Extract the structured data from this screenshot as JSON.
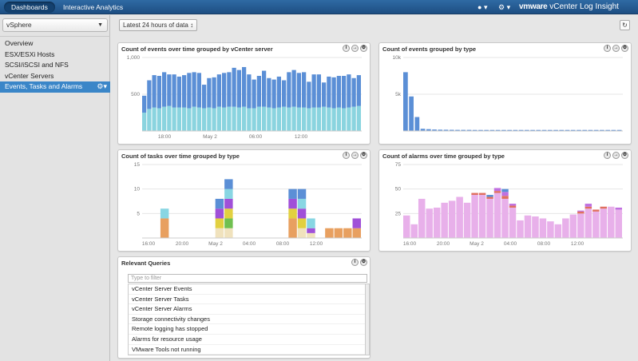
{
  "topbar": {
    "tabs": [
      "Dashboards",
      "Interactive Analytics"
    ],
    "user_icon": "user-icon",
    "settings_icon": "gear-icon",
    "brand_logo": "vmware",
    "brand_title": "vCenter Log Insight"
  },
  "sidebar": {
    "selected": "vSphere",
    "items": [
      "Overview",
      "ESX/ESXi Hosts",
      "SCSI/iSCSI and NFS",
      "vCenter Servers",
      "Events, Tasks and Alarms"
    ],
    "active_index": 4
  },
  "toolbar": {
    "time_range": "Latest 24 hours of data",
    "refresh_icon": "refresh-icon"
  },
  "panels": {
    "events_by_server": {
      "title": "Count of events over time grouped by vCenter server"
    },
    "events_by_type": {
      "title": "Count of events grouped by type"
    },
    "tasks_by_type": {
      "title": "Count of tasks over time grouped by type"
    },
    "alarms_by_type": {
      "title": "Count of alarms over time grouped by type"
    },
    "queries": {
      "title": "Relevant Queries",
      "filter_placeholder": "Type to filter",
      "items": [
        "vCenter Server Events",
        "vCenter Server Tasks",
        "vCenter Server Alarms",
        "Storage connectivity changes",
        "Remote logging has stopped",
        "Alarms for resource usage",
        "VMware Tools not running"
      ]
    }
  },
  "chart_data": [
    {
      "type": "bar",
      "title": "Count of events over time grouped by vCenter server",
      "stacked": true,
      "xticks": [
        "18:00",
        "May 2",
        "06:00",
        "12:00"
      ],
      "yticks": [
        "500",
        "1,000"
      ],
      "ylim": [
        0,
        1000
      ],
      "series": [
        {
          "color": "#8ad4df",
          "values": [
            250,
            300,
            320,
            310,
            330,
            340,
            320,
            320,
            320,
            310,
            330,
            320,
            310,
            320,
            310,
            330,
            320,
            330,
            330,
            320,
            330,
            310,
            310,
            330,
            330,
            320,
            310,
            320,
            330,
            320,
            330,
            320,
            320,
            310,
            320,
            320,
            330,
            320,
            310,
            320,
            310,
            320,
            330,
            340
          ]
        },
        {
          "color": "#5b8fd6",
          "values": [
            230,
            390,
            440,
            440,
            470,
            430,
            450,
            420,
            440,
            480,
            470,
            470,
            320,
            400,
            420,
            440,
            470,
            470,
            530,
            510,
            540,
            460,
            390,
            420,
            490,
            400,
            390,
            420,
            360,
            480,
            500,
            470,
            480,
            360,
            450,
            450,
            330,
            420,
            420,
            430,
            440,
            450,
            390,
            420
          ]
        }
      ]
    },
    {
      "type": "bar",
      "title": "Count of events grouped by type",
      "yticks": [
        "5k",
        "10k"
      ],
      "ylim": [
        0,
        10000
      ],
      "values": [
        8000,
        4700,
        1900,
        300,
        250,
        200,
        180,
        170,
        160,
        150,
        150,
        150,
        140,
        140,
        140,
        140,
        140,
        140,
        140,
        140,
        140,
        140,
        140,
        140,
        140,
        140,
        140,
        140,
        140,
        140,
        140,
        140,
        140,
        140,
        140,
        140,
        140,
        140
      ]
    },
    {
      "type": "bar",
      "title": "Count of tasks over time grouped by type",
      "stacked": true,
      "xticks": [
        "16:00",
        "20:00",
        "May 2",
        "04:00",
        "08:00",
        "12:00"
      ],
      "yticks": [
        "5",
        "10",
        "15"
      ],
      "ylim": [
        0,
        15
      ],
      "categories_slots": 24,
      "series": [
        {
          "color": "#f0e2bd",
          "values": [
            0,
            0,
            0,
            0,
            0,
            0,
            0,
            0,
            2,
            2,
            0,
            0,
            0,
            0,
            0,
            0,
            0,
            2,
            1,
            0,
            0,
            0,
            0,
            0
          ]
        },
        {
          "color": "#e8a060",
          "values": [
            0,
            0,
            4,
            0,
            0,
            0,
            0,
            0,
            0,
            0,
            0,
            0,
            0,
            0,
            0,
            0,
            4,
            0,
            0,
            0,
            2,
            2,
            2,
            2
          ]
        },
        {
          "color": "#70c050",
          "values": [
            0,
            0,
            0,
            0,
            0,
            0,
            0,
            0,
            0,
            2,
            0,
            0,
            0,
            0,
            0,
            0,
            0,
            0,
            0,
            0,
            0,
            0,
            0,
            0
          ]
        },
        {
          "color": "#e2d040",
          "values": [
            0,
            0,
            0,
            0,
            0,
            0,
            0,
            0,
            2,
            2,
            0,
            0,
            0,
            0,
            0,
            0,
            2,
            2,
            0,
            0,
            0,
            0,
            0,
            0
          ]
        },
        {
          "color": "#a050d8",
          "values": [
            0,
            0,
            0,
            0,
            0,
            0,
            0,
            0,
            2,
            2,
            0,
            0,
            0,
            0,
            0,
            0,
            2,
            2,
            1,
            0,
            0,
            0,
            0,
            2
          ]
        },
        {
          "color": "#88d6e3",
          "values": [
            0,
            0,
            2,
            0,
            0,
            0,
            0,
            0,
            0,
            2,
            0,
            0,
            0,
            0,
            0,
            0,
            0,
            2,
            2,
            0,
            0,
            0,
            0,
            0
          ]
        },
        {
          "color": "#5b8fd6",
          "values": [
            0,
            0,
            0,
            0,
            0,
            0,
            0,
            0,
            2,
            2,
            0,
            0,
            0,
            0,
            0,
            0,
            2,
            2,
            0,
            0,
            0,
            0,
            0,
            0
          ]
        }
      ]
    },
    {
      "type": "bar",
      "title": "Count of alarms over time grouped by type",
      "stacked": true,
      "xticks": [
        "16:00",
        "20:00",
        "May 2",
        "04:00",
        "08:00",
        "12:00"
      ],
      "yticks": [
        "25",
        "50",
        "75"
      ],
      "ylim": [
        0,
        75
      ],
      "series": [
        {
          "color": "#e8b0ea",
          "values": [
            23,
            14,
            40,
            30,
            31,
            36,
            38,
            42,
            36,
            44,
            44,
            40,
            46,
            40,
            31,
            18,
            23,
            22,
            20,
            17,
            14,
            20,
            24,
            25,
            30,
            27,
            30,
            32,
            29
          ]
        },
        {
          "color": "#e07060",
          "values": [
            0,
            0,
            0,
            0,
            0,
            0,
            0,
            0,
            0,
            2,
            2,
            2,
            2,
            3,
            2,
            0,
            0,
            0,
            0,
            0,
            0,
            0,
            0,
            2,
            2,
            2,
            2,
            0,
            0
          ]
        },
        {
          "color": "#c070e0",
          "values": [
            0,
            0,
            0,
            0,
            0,
            0,
            0,
            0,
            0,
            0,
            0,
            0,
            3,
            4,
            2,
            0,
            0,
            0,
            0,
            0,
            0,
            0,
            0,
            1,
            3,
            0,
            0,
            0,
            2
          ]
        },
        {
          "color": "#5b8fd6",
          "values": [
            0,
            0,
            0,
            0,
            0,
            0,
            0,
            0,
            0,
            0,
            0,
            2,
            0,
            3,
            0,
            0,
            0,
            0,
            0,
            0,
            0,
            0,
            0,
            0,
            0,
            0,
            0,
            0,
            0
          ]
        }
      ]
    }
  ]
}
